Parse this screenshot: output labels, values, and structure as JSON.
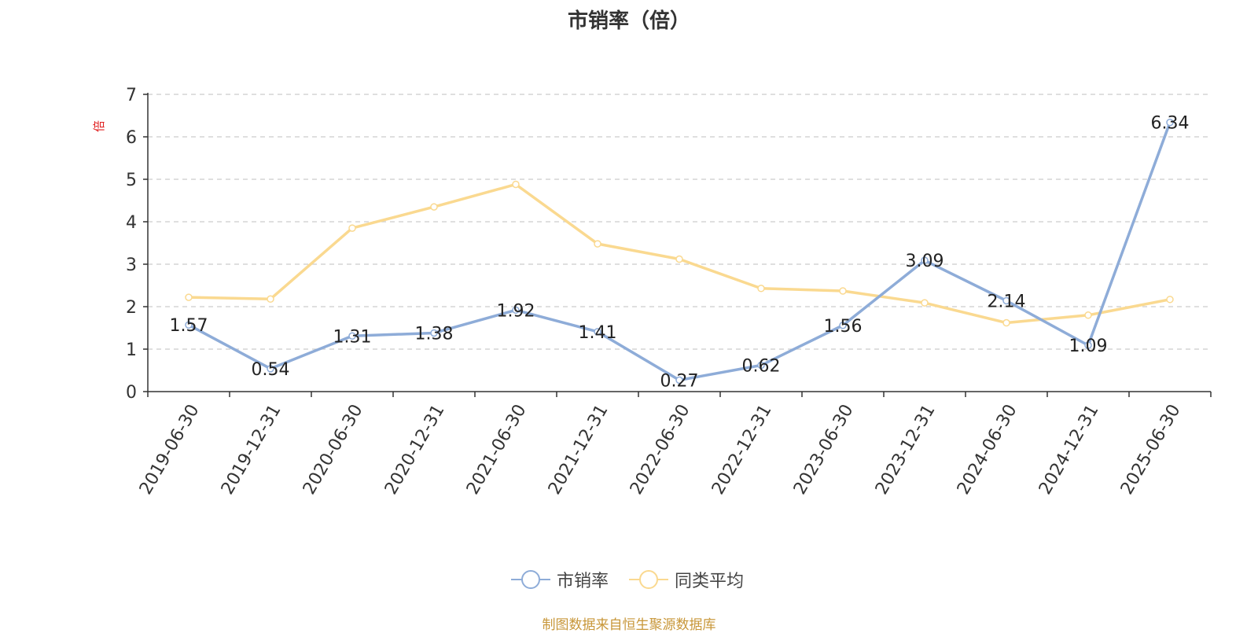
{
  "title": "市销率（倍）",
  "unit_label": "倍",
  "source_note": "制图数据来自恒生聚源数据库",
  "colors": {
    "series1": "#8eacd8",
    "series2": "#fad990",
    "grid": "#cccccc",
    "axis": "#333333",
    "unit": "#e02020"
  },
  "chart_data": {
    "type": "line",
    "title": "市销率（倍）",
    "ylabel": "倍",
    "xlabel": "",
    "ylim": [
      0,
      7
    ],
    "yticks": [
      0,
      1,
      2,
      3,
      4,
      5,
      6,
      7
    ],
    "grid": true,
    "legend_position": "bottom",
    "categories": [
      "2019-06-30",
      "2019-12-31",
      "2020-06-30",
      "2020-12-31",
      "2021-06-30",
      "2021-12-31",
      "2022-06-30",
      "2022-12-31",
      "2023-06-30",
      "2023-12-31",
      "2024-06-30",
      "2024-12-31",
      "2025-06-30"
    ],
    "series": [
      {
        "name": "市销率",
        "values": [
          1.57,
          0.54,
          1.31,
          1.38,
          1.92,
          1.41,
          0.27,
          0.62,
          1.56,
          3.09,
          2.14,
          1.09,
          6.34
        ],
        "labels": [
          "1.57",
          "0.54",
          "1.31",
          "1.38",
          "1.92",
          "1.41",
          "0.27",
          "0.62",
          "1.56",
          "3.09",
          "2.14",
          "1.09",
          "6.34"
        ]
      },
      {
        "name": "同类平均",
        "values": [
          2.22,
          2.18,
          3.85,
          4.35,
          4.88,
          3.48,
          3.12,
          2.43,
          2.37,
          2.09,
          1.62,
          1.8,
          2.17
        ]
      }
    ]
  }
}
